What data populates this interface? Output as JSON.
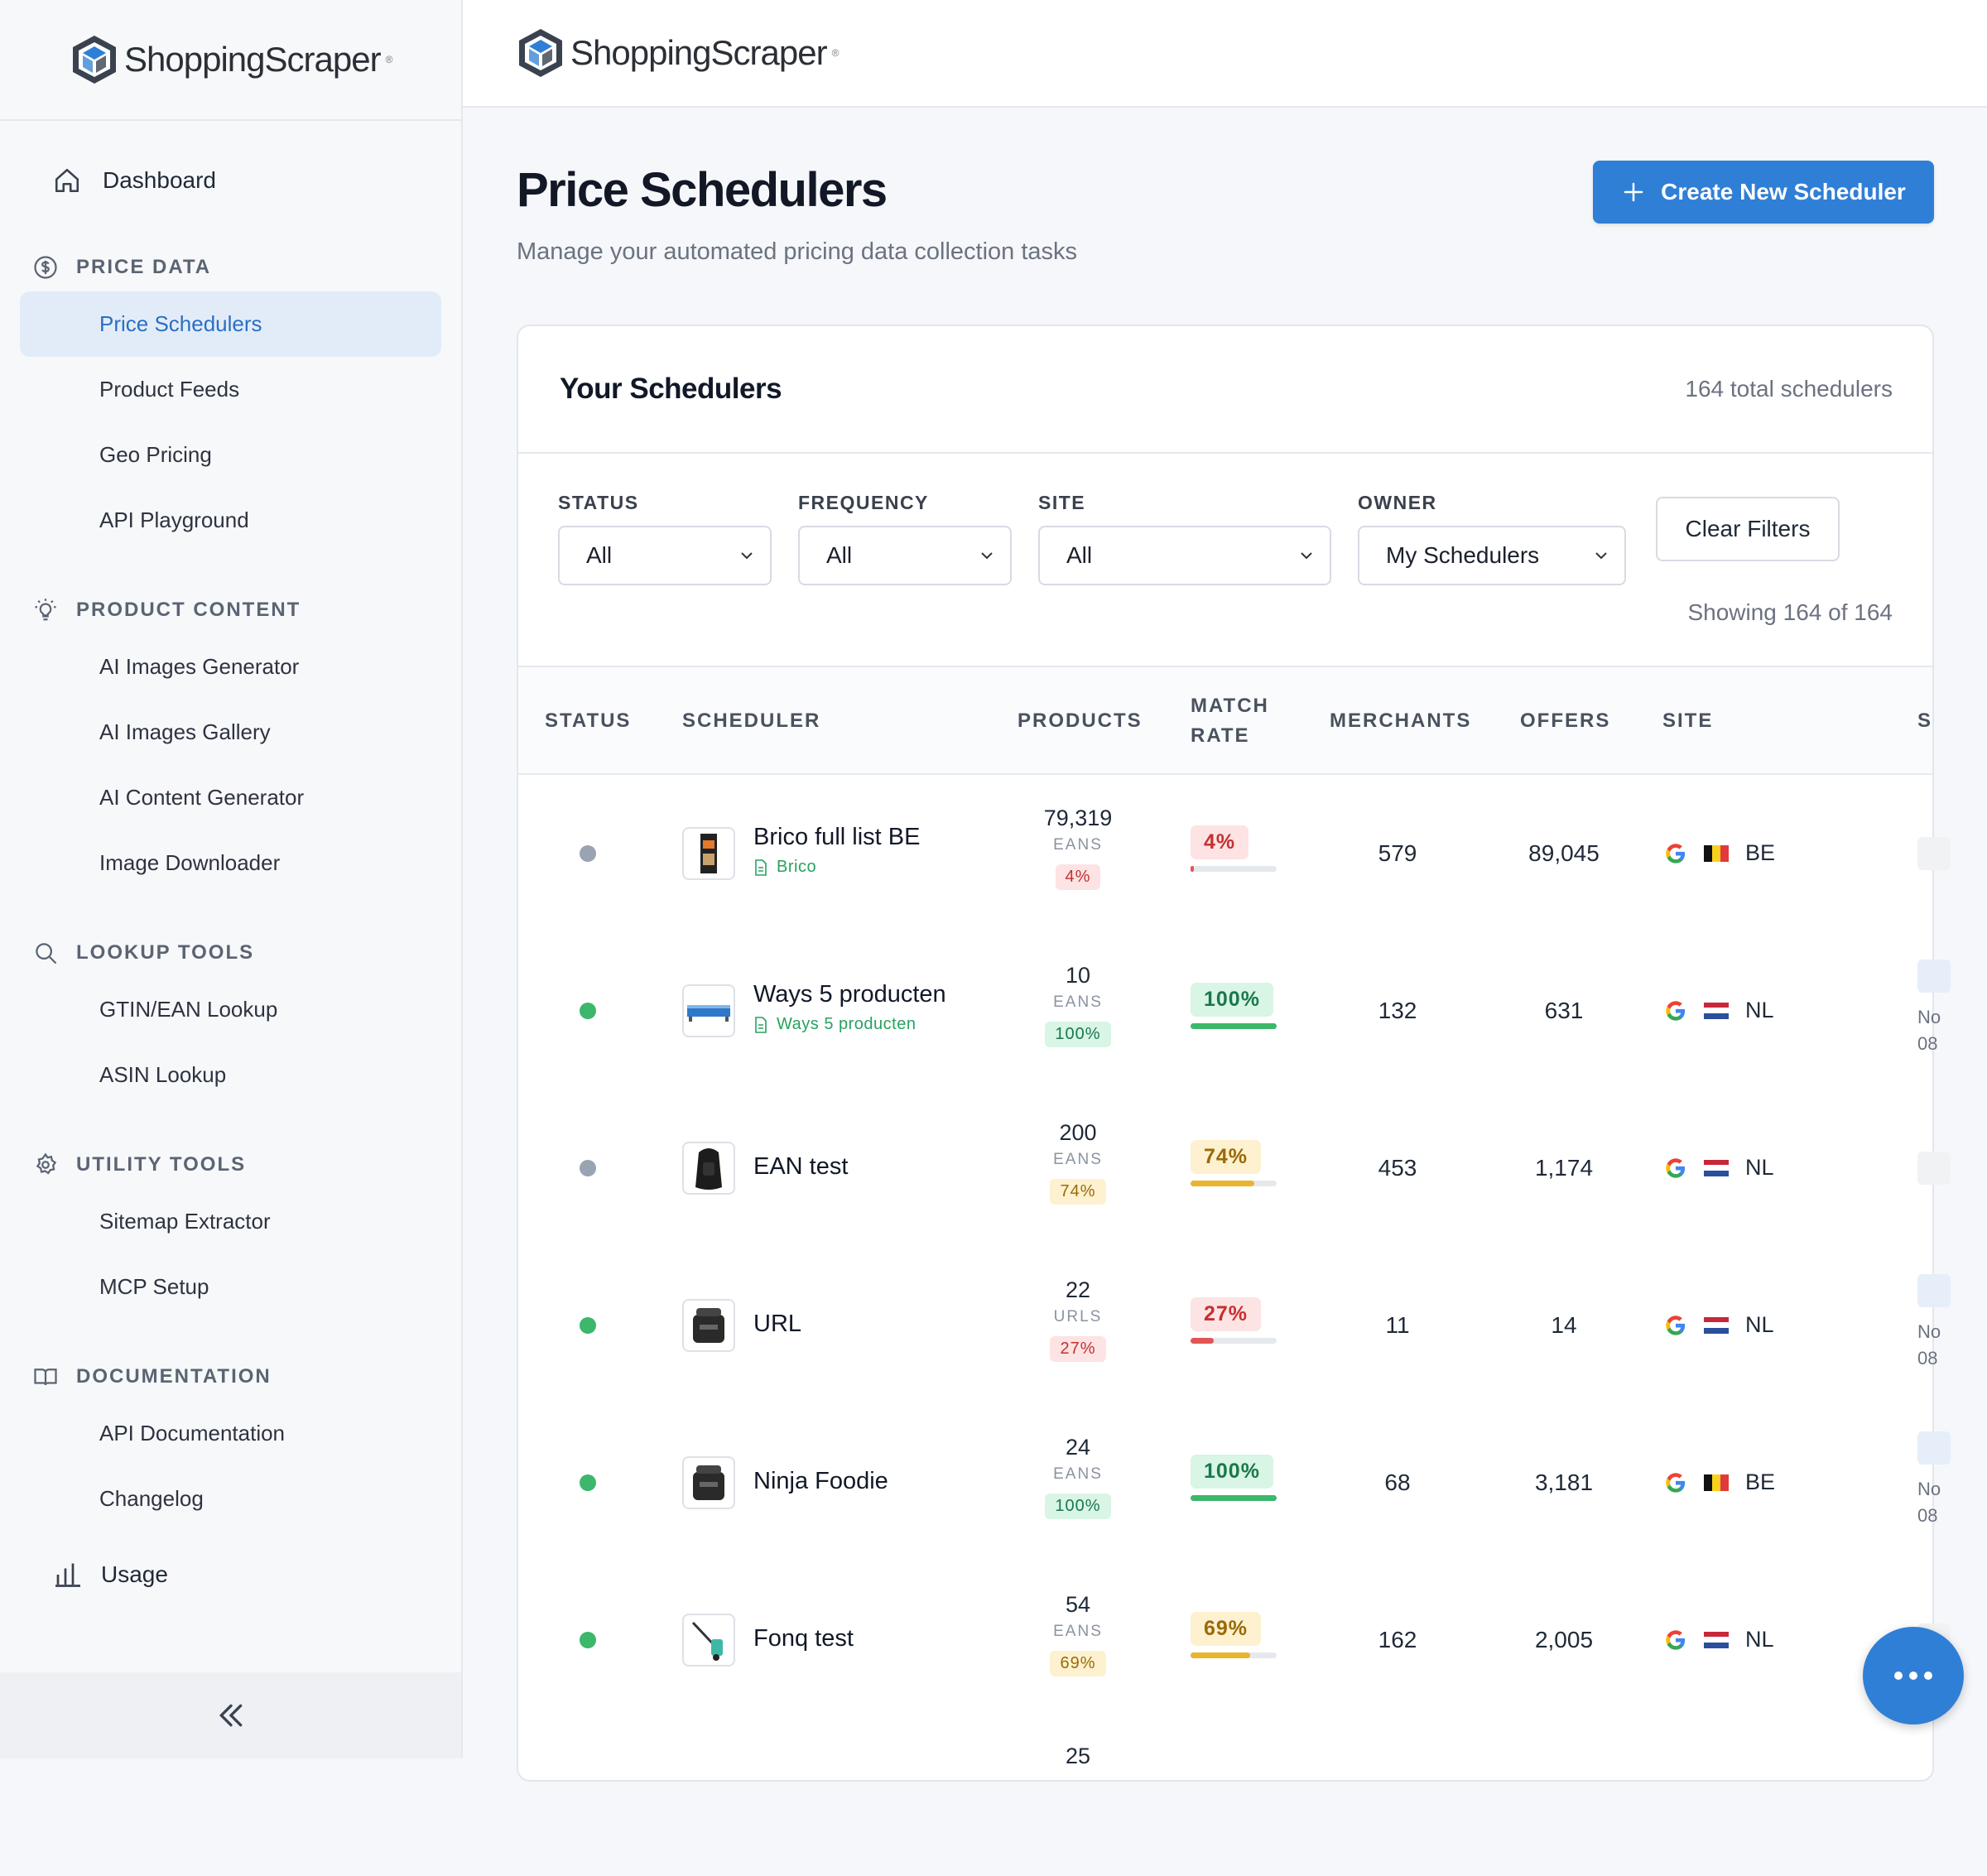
{
  "brand": {
    "name": "ShoppingScraper",
    "reg": "®"
  },
  "sidebar": {
    "dashboard": "Dashboard",
    "sections": [
      {
        "title": "PRICE DATA",
        "icon": "dollar-circle-icon",
        "items": [
          "Price Schedulers",
          "Product Feeds",
          "Geo Pricing",
          "API Playground"
        ]
      },
      {
        "title": "PRODUCT CONTENT",
        "icon": "lightbulb-icon",
        "items": [
          "AI Images Generator",
          "AI Images Gallery",
          "AI Content Generator",
          "Image Downloader"
        ]
      },
      {
        "title": "LOOKUP TOOLS",
        "icon": "search-icon",
        "items": [
          "GTIN/EAN Lookup",
          "ASIN Lookup"
        ]
      },
      {
        "title": "UTILITY TOOLS",
        "icon": "gear-icon",
        "items": [
          "Sitemap Extractor",
          "MCP Setup"
        ]
      },
      {
        "title": "DOCUMENTATION",
        "icon": "book-icon",
        "items": [
          "API Documentation",
          "Changelog"
        ]
      }
    ],
    "active_item": "Price Schedulers",
    "usage": "Usage"
  },
  "page": {
    "title": "Price Schedulers",
    "subtitle": "Manage your automated pricing data collection tasks",
    "create_button": "Create New Scheduler"
  },
  "card": {
    "title": "Your Schedulers",
    "count": "164 total schedulers",
    "filters": {
      "status": {
        "label": "STATUS",
        "value": "All"
      },
      "frequency": {
        "label": "FREQUENCY",
        "value": "All"
      },
      "site": {
        "label": "SITE",
        "value": "All"
      },
      "owner": {
        "label": "OWNER",
        "value": "My Schedulers"
      },
      "clear": "Clear Filters"
    },
    "showing": "Showing 164 of 164"
  },
  "table": {
    "headers": {
      "status": "STATUS",
      "scheduler": "SCHEDULER",
      "products": "PRODUCTS",
      "match_rate_1": "MATCH",
      "match_rate_2": "RATE",
      "merchants": "MERCHANTS",
      "offers": "OFFERS",
      "site": "SITE",
      "cut": "S"
    },
    "rows": [
      {
        "status": "inactive",
        "name": "Brico full list BE",
        "feed": "Brico",
        "products": "79,319",
        "unit": "EANS",
        "rate": "4%",
        "rate_value": 4,
        "tone": "red",
        "merchants": "579",
        "offers": "89,045",
        "country": "BE",
        "edge": ""
      },
      {
        "status": "active",
        "name": "Ways 5 producten",
        "feed": "Ways 5 producten",
        "products": "10",
        "unit": "EANS",
        "rate": "100%",
        "rate_value": 100,
        "tone": "green",
        "merchants": "132",
        "offers": "631",
        "country": "NL",
        "edge": "No 08"
      },
      {
        "status": "inactive",
        "name": "EAN test",
        "feed": "",
        "products": "200",
        "unit": "EANS",
        "rate": "74%",
        "rate_value": 74,
        "tone": "yellow",
        "merchants": "453",
        "offers": "1,174",
        "country": "NL",
        "edge": ""
      },
      {
        "status": "active",
        "name": "URL",
        "feed": "",
        "products": "22",
        "unit": "URLS",
        "rate": "27%",
        "rate_value": 27,
        "tone": "red",
        "merchants": "11",
        "offers": "14",
        "country": "NL",
        "edge": "No 08"
      },
      {
        "status": "active",
        "name": "Ninja Foodie",
        "feed": "",
        "products": "24",
        "unit": "EANS",
        "rate": "100%",
        "rate_value": 100,
        "tone": "green",
        "merchants": "68",
        "offers": "3,181",
        "country": "BE",
        "edge": "No 08"
      },
      {
        "status": "active",
        "name": "Fonq test",
        "feed": "",
        "products": "54",
        "unit": "EANS",
        "rate": "69%",
        "rate_value": 69,
        "tone": "yellow",
        "merchants": "162",
        "offers": "2,005",
        "country": "NL",
        "edge": ""
      }
    ],
    "partial_next_row_products": "25"
  },
  "colors": {
    "accent": "#2f7fd6",
    "active_dot": "#3cb76b",
    "inactive_dot": "#9aa3b1"
  }
}
